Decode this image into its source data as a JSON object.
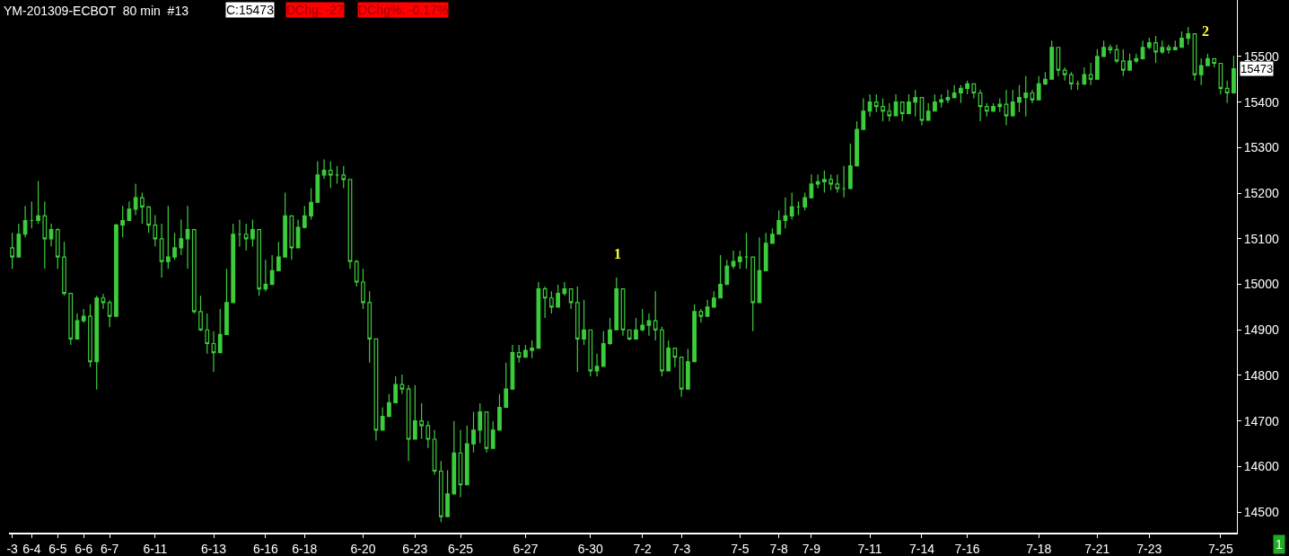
{
  "chart_data": {
    "type": "candlestick",
    "title": "YM-201309-ECBOT  80 min  #13",
    "color": "#3ccc3c",
    "categories": [
      "-3",
      null,
      null,
      "6-4",
      null,
      null,
      null,
      "6-5",
      null,
      null,
      null,
      "6-6",
      null,
      null,
      null,
      "6-7",
      null,
      null,
      null,
      null,
      null,
      null,
      "6-11",
      null,
      null,
      null,
      null,
      null,
      null,
      null,
      null,
      "6-13",
      null,
      null,
      null,
      null,
      null,
      null,
      null,
      "6-16",
      null,
      null,
      null,
      null,
      null,
      "6-18",
      null,
      null,
      null,
      null,
      null,
      null,
      null,
      null,
      "6-20",
      null,
      null,
      null,
      null,
      null,
      null,
      null,
      "6-23",
      null,
      null,
      null,
      null,
      null,
      null,
      "6-25",
      null,
      null,
      null,
      null,
      null,
      null,
      null,
      null,
      null,
      "6-27",
      null,
      null,
      null,
      null,
      null,
      null,
      null,
      null,
      null,
      "6-30",
      null,
      null,
      null,
      null,
      null,
      null,
      null,
      "7-2",
      null,
      null,
      null,
      null,
      null,
      "7-3",
      null,
      null,
      null,
      null,
      null,
      null,
      null,
      null,
      "7-5",
      null,
      null,
      null,
      null,
      null,
      "7-8",
      null,
      null,
      null,
      null,
      "7-9",
      null,
      null,
      null,
      null,
      null,
      null,
      null,
      null,
      "7-11",
      null,
      null,
      null,
      null,
      null,
      null,
      null,
      "7-14",
      null,
      null,
      null,
      null,
      null,
      null,
      "7-16",
      null,
      null,
      null,
      null,
      null,
      null,
      null,
      null,
      null,
      null,
      "7-18",
      null,
      null,
      null,
      null,
      null,
      null,
      null,
      null,
      "7-21",
      null,
      null,
      null,
      null,
      null,
      null,
      null,
      "7-23",
      null,
      null,
      null,
      null,
      null,
      null,
      null,
      null,
      null,
      null,
      "7-25",
      null,
      null
    ],
    "ohlc": [
      [
        15080,
        15113,
        15034,
        15060
      ],
      [
        15060,
        15133,
        15060,
        15110
      ],
      [
        15110,
        15172,
        15103,
        15140
      ],
      [
        15140,
        15182,
        15123,
        15140
      ],
      [
        15140,
        15227,
        15133,
        15150
      ],
      [
        15150,
        15182,
        15034,
        15100
      ],
      [
        15100,
        15133,
        15083,
        15120
      ],
      [
        15120,
        15123,
        15034,
        15060
      ],
      [
        15060,
        15093,
        14975,
        14980
      ],
      [
        14980,
        14980,
        14867,
        14880
      ],
      [
        14880,
        14936,
        14880,
        14920
      ],
      [
        14920,
        14946,
        14916,
        14930
      ],
      [
        14930,
        14956,
        14818,
        14830
      ],
      [
        14830,
        14975,
        14769,
        14970
      ],
      [
        14970,
        14979,
        14946,
        14960
      ],
      [
        14960,
        14965,
        14906,
        14930
      ],
      [
        14930,
        15133,
        14930,
        15130
      ],
      [
        15130,
        15172,
        15103,
        15140
      ],
      [
        15140,
        15182,
        15140,
        15165
      ],
      [
        15165,
        15221,
        15152,
        15190
      ],
      [
        15190,
        15201,
        15133,
        15170
      ],
      [
        15170,
        15172,
        15113,
        15130
      ],
      [
        15130,
        15152,
        15083,
        15100
      ],
      [
        15100,
        15133,
        15015,
        15050
      ],
      [
        15050,
        15172,
        15034,
        15060
      ],
      [
        15060,
        15113,
        15054,
        15080
      ],
      [
        15080,
        15142,
        15064,
        15100
      ],
      [
        15100,
        15172,
        15034,
        15120
      ],
      [
        15120,
        15120,
        14936,
        14940
      ],
      [
        14940,
        14975,
        14897,
        14900
      ],
      [
        14900,
        14936,
        14848,
        14870
      ],
      [
        14870,
        14897,
        14808,
        14850
      ],
      [
        14850,
        14946,
        14850,
        14890
      ],
      [
        14890,
        15034,
        14890,
        14960
      ],
      [
        14960,
        15133,
        14960,
        15110
      ],
      [
        15110,
        15142,
        15083,
        15110
      ],
      [
        15110,
        15133,
        15074,
        15100
      ],
      [
        15100,
        15142,
        15083,
        15120
      ],
      [
        15120,
        15120,
        14975,
        14990
      ],
      [
        14990,
        15054,
        14985,
        15000
      ],
      [
        15000,
        15064,
        15000,
        15030
      ],
      [
        15030,
        15093,
        15030,
        15060
      ],
      [
        15060,
        15201,
        15060,
        15150
      ],
      [
        15150,
        15150,
        15054,
        15080
      ],
      [
        15080,
        15142,
        15080,
        15125
      ],
      [
        15125,
        15172,
        15123,
        15150
      ],
      [
        15150,
        15211,
        15142,
        15180
      ],
      [
        15180,
        15270,
        15180,
        15240
      ],
      [
        15240,
        15274,
        15231,
        15250
      ],
      [
        15250,
        15270,
        15211,
        15240
      ],
      [
        15240,
        15260,
        15221,
        15240
      ],
      [
        15240,
        15260,
        15211,
        15230
      ],
      [
        15230,
        15230,
        15034,
        15050
      ],
      [
        15050,
        15054,
        14995,
        15005
      ],
      [
        15005,
        15034,
        14946,
        14960
      ],
      [
        14960,
        14985,
        14828,
        14880
      ],
      [
        14880,
        14880,
        14657,
        14680
      ],
      [
        14680,
        14730,
        14680,
        14710
      ],
      [
        14710,
        14759,
        14710,
        14740
      ],
      [
        14740,
        14798,
        14740,
        14780
      ],
      [
        14780,
        14802,
        14759,
        14770
      ],
      [
        14770,
        14779,
        14612,
        14660
      ],
      [
        14660,
        14779,
        14660,
        14700
      ],
      [
        14700,
        14739,
        14661,
        14690
      ],
      [
        14690,
        14700,
        14641,
        14660
      ],
      [
        14660,
        14680,
        14582,
        14590
      ],
      [
        14590,
        14612,
        14478,
        14490
      ],
      [
        14490,
        14592,
        14490,
        14540
      ],
      [
        14540,
        14700,
        14540,
        14630
      ],
      [
        14630,
        14680,
        14533,
        14560
      ],
      [
        14560,
        14690,
        14560,
        14650
      ],
      [
        14650,
        14720,
        14631,
        14680
      ],
      [
        14680,
        14739,
        14651,
        14720
      ],
      [
        14720,
        14720,
        14631,
        14640
      ],
      [
        14640,
        14700,
        14640,
        14680
      ],
      [
        14680,
        14759,
        14680,
        14730
      ],
      [
        14730,
        14828,
        14730,
        14770
      ],
      [
        14770,
        14867,
        14770,
        14850
      ],
      [
        14850,
        14867,
        14828,
        14840
      ],
      [
        14840,
        14867,
        14840,
        14855
      ],
      [
        14855,
        14877,
        14838,
        14860
      ],
      [
        14860,
        15005,
        14860,
        14990
      ],
      [
        14990,
        14995,
        14926,
        14970
      ],
      [
        14970,
        14985,
        14936,
        14950
      ],
      [
        14950,
        14999,
        14950,
        14980
      ],
      [
        14980,
        15005,
        14975,
        14990
      ],
      [
        14990,
        14990,
        14946,
        14960
      ],
      [
        14960,
        14995,
        14808,
        14880
      ],
      [
        14880,
        14966,
        14867,
        14900
      ],
      [
        14900,
        14900,
        14798,
        14810
      ],
      [
        14810,
        14848,
        14798,
        14820
      ],
      [
        14820,
        14897,
        14820,
        14870
      ],
      [
        14870,
        14926,
        14867,
        14900
      ],
      [
        14900,
        15015,
        14900,
        14990
      ],
      [
        14990,
        14990,
        14887,
        14900
      ],
      [
        14900,
        14900,
        14877,
        14880
      ],
      [
        14880,
        14926,
        14880,
        14900
      ],
      [
        14900,
        14946,
        14897,
        14910
      ],
      [
        14910,
        14936,
        14887,
        14920
      ],
      [
        14920,
        14985,
        14877,
        14900
      ],
      [
        14900,
        14907,
        14798,
        14810
      ],
      [
        14810,
        14877,
        14810,
        14860
      ],
      [
        14860,
        14860,
        14818,
        14840
      ],
      [
        14840,
        14840,
        14753,
        14770
      ],
      [
        14770,
        14858,
        14770,
        14830
      ],
      [
        14830,
        14956,
        14830,
        14940
      ],
      [
        14940,
        14946,
        14916,
        14930
      ],
      [
        14930,
        14966,
        14930,
        14950
      ],
      [
        14950,
        14985,
        14950,
        14970
      ],
      [
        14970,
        15064,
        14970,
        15000
      ],
      [
        15000,
        15054,
        15000,
        15040
      ],
      [
        15040,
        15074,
        15034,
        15050
      ],
      [
        15050,
        15074,
        15034,
        15060
      ],
      [
        15060,
        15113,
        15034,
        15060
      ],
      [
        15060,
        15060,
        14897,
        14960
      ],
      [
        14960,
        15103,
        14960,
        15030
      ],
      [
        15030,
        15113,
        15030,
        15090
      ],
      [
        15090,
        15123,
        15090,
        15110
      ],
      [
        15110,
        15162,
        15110,
        15140
      ],
      [
        15140,
        15191,
        15123,
        15150
      ],
      [
        15150,
        15201,
        15142,
        15170
      ],
      [
        15170,
        15182,
        15152,
        15170
      ],
      [
        15170,
        15201,
        15162,
        15190
      ],
      [
        15190,
        15241,
        15190,
        15220
      ],
      [
        15220,
        15241,
        15211,
        15225
      ],
      [
        15225,
        15250,
        15201,
        15230
      ],
      [
        15230,
        15241,
        15207,
        15220
      ],
      [
        15220,
        15241,
        15201,
        15210
      ],
      [
        15210,
        15260,
        15191,
        15210
      ],
      [
        15210,
        15309,
        15210,
        15260
      ],
      [
        15260,
        15358,
        15260,
        15340
      ],
      [
        15340,
        15408,
        15340,
        15380
      ],
      [
        15380,
        15417,
        15368,
        15400
      ],
      [
        15400,
        15417,
        15378,
        15390
      ],
      [
        15390,
        15408,
        15358,
        15380
      ],
      [
        15380,
        15398,
        15358,
        15370
      ],
      [
        15370,
        15417,
        15370,
        15400
      ],
      [
        15400,
        15400,
        15358,
        15375
      ],
      [
        15375,
        15417,
        15375,
        15400
      ],
      [
        15400,
        15427,
        15368,
        15410
      ],
      [
        15410,
        15410,
        15349,
        15360
      ],
      [
        15360,
        15398,
        15360,
        15380
      ],
      [
        15380,
        15417,
        15380,
        15400
      ],
      [
        15400,
        15417,
        15388,
        15405
      ],
      [
        15405,
        15427,
        15398,
        15410
      ],
      [
        15410,
        15437,
        15408,
        15420
      ],
      [
        15420,
        15437,
        15398,
        15430
      ],
      [
        15430,
        15447,
        15417,
        15440
      ],
      [
        15440,
        15440,
        15408,
        15420
      ],
      [
        15420,
        15427,
        15358,
        15390
      ],
      [
        15390,
        15398,
        15368,
        15380
      ],
      [
        15380,
        15398,
        15378,
        15390
      ],
      [
        15390,
        15408,
        15378,
        15395
      ],
      [
        15395,
        15427,
        15349,
        15370
      ],
      [
        15370,
        15427,
        15368,
        15400
      ],
      [
        15400,
        15437,
        15378,
        15410
      ],
      [
        15410,
        15457,
        15368,
        15420
      ],
      [
        15420,
        15427,
        15398,
        15405
      ],
      [
        15405,
        15457,
        15405,
        15440
      ],
      [
        15440,
        15466,
        15437,
        15450
      ],
      [
        15450,
        15535,
        15450,
        15520
      ],
      [
        15520,
        15520,
        15457,
        15470
      ],
      [
        15470,
        15476,
        15447,
        15460
      ],
      [
        15460,
        15466,
        15427,
        15440
      ],
      [
        15440,
        15447,
        15427,
        15440
      ],
      [
        15440,
        15476,
        15437,
        15460
      ],
      [
        15460,
        15486,
        15437,
        15450
      ],
      [
        15450,
        15516,
        15450,
        15500
      ],
      [
        15500,
        15535,
        15500,
        15520
      ],
      [
        15520,
        15526,
        15506,
        15515
      ],
      [
        15515,
        15526,
        15486,
        15490
      ],
      [
        15490,
        15516,
        15457,
        15470
      ],
      [
        15470,
        15506,
        15470,
        15490
      ],
      [
        15490,
        15506,
        15486,
        15495
      ],
      [
        15495,
        15535,
        15495,
        15520
      ],
      [
        15520,
        15541,
        15516,
        15530
      ],
      [
        15530,
        15545,
        15486,
        15510
      ],
      [
        15510,
        15535,
        15506,
        15520
      ],
      [
        15520,
        15526,
        15506,
        15515
      ],
      [
        15515,
        15535,
        15515,
        15520
      ],
      [
        15520,
        15555,
        15520,
        15540
      ],
      [
        15540,
        15565,
        15526,
        15550
      ],
      [
        15550,
        15550,
        15447,
        15460
      ],
      [
        15460,
        15496,
        15437,
        15480
      ],
      [
        15480,
        15506,
        15480,
        15495
      ],
      [
        15495,
        15496,
        15476,
        15485
      ],
      [
        15485,
        15485,
        15417,
        15430
      ],
      [
        15430,
        15447,
        15398,
        15420
      ],
      [
        15420,
        15502,
        15420,
        15473
      ]
    ],
    "ylim": [
      14455,
      15624
    ],
    "yticks": [
      14500,
      14600,
      14700,
      14800,
      14900,
      15000,
      15100,
      15200,
      15300,
      15400,
      15500
    ],
    "grid": false,
    "annotations": [
      "C:15473",
      "DChg: -27",
      "DChg%: -0.17%",
      "1",
      "1",
      "2",
      "15473"
    ]
  }
}
